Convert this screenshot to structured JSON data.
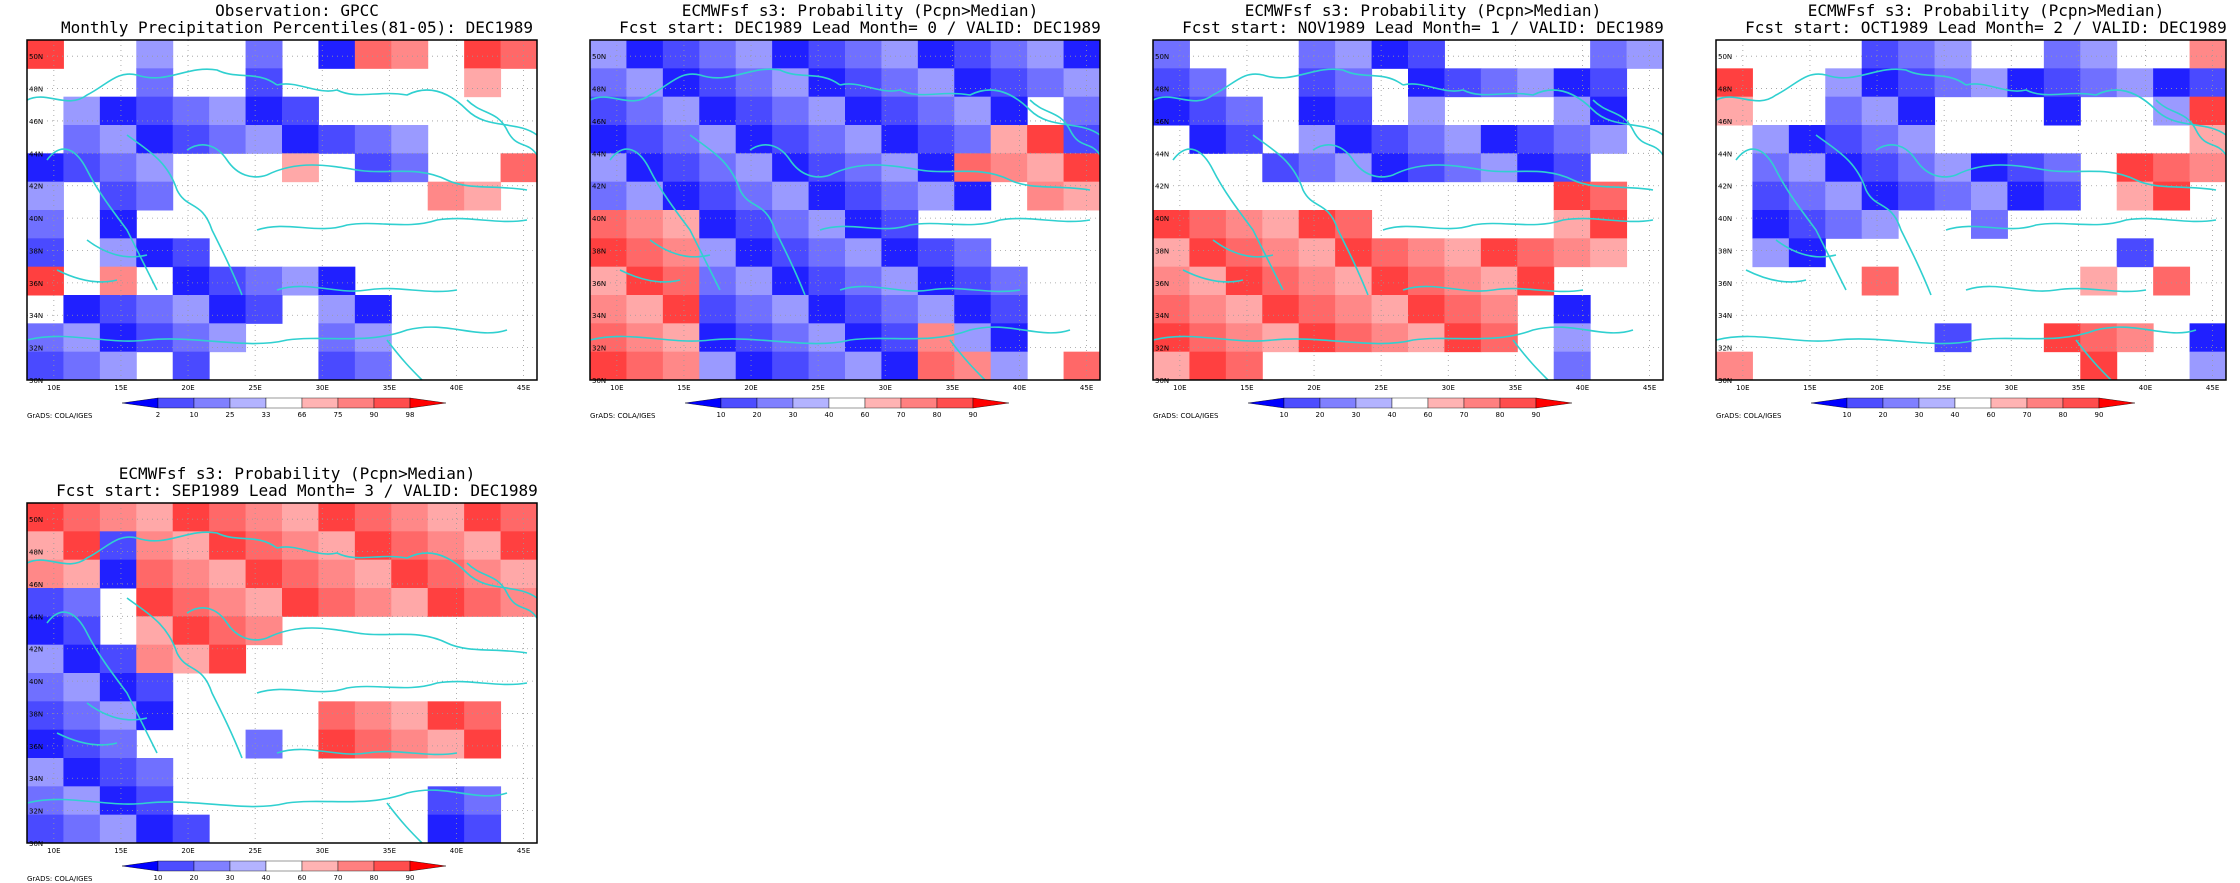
{
  "panels": [
    {
      "title1": "Observation: GPCC",
      "title2": "Monthly Precipitation Percentiles(81-05): DEC1989",
      "colorbar": {
        "labels": [
          "2",
          "10",
          "25",
          "33",
          "66",
          "75",
          "90",
          "98"
        ],
        "colors": [
          "#0000ff",
          "#4d4dff",
          "#8080ff",
          "#b3b3ff",
          "#ffffff",
          "#ffb3b3",
          "#ff8080",
          "#ff4d4d",
          "#ff0000"
        ]
      },
      "grid": [
        "rwwbwwbwbrrwrr",
        "wwwbwwbwwwwwrw",
        "wbbbbbbbwwwwww",
        "wbbbbbbbbbbwww",
        "bbbbwwwrwbbwwr",
        "bwbbwwwwwwwrrw",
        "bwbwwwwwwwwwww",
        "bwbbbwwwwwwwww",
        "rwrwbbbbbwwwww",
        "wbbbbbbwbbwwww",
        "bbbbbbwwbbwwww",
        "bbbwbwwwbbwwww"
      ],
      "credit": "GrADS: COLA/IGES"
    },
    {
      "title1": "ECMWFsf s3: Probability (Pcpn>Median)",
      "title2": "Fcst start: DEC1989   Lead Month= 0 / VALID: DEC1989",
      "colorbar": {
        "labels": [
          "10",
          "20",
          "30",
          "40",
          "60",
          "70",
          "80",
          "90"
        ],
        "colors": [
          "#0000ff",
          "#4d4dff",
          "#8080ff",
          "#b3b3ff",
          "#ffffff",
          "#ffb3b3",
          "#ff8080",
          "#ff4d4d",
          "#ff0000"
        ]
      },
      "grid": [
        "bbbbbbbbbbbbbb",
        "bbbbbbbbbbbbbb",
        "bbbbbbbbbbbbwb",
        "bbbbbbbbbbbrrb",
        "bbbbbbbbbbrrrr",
        "bbbbbbbbbbbwrr",
        "rrrbbbbbbwwwww",
        "rrrbbbbbbbbwww",
        "rrrbbbbbbbbbww",
        "rrrbbbbbbbbbww",
        "rrrbbbbbbrbbww",
        "rrrbbbbbbrrbwr"
      ],
      "credit": "GrADS: COLA/IGES"
    },
    {
      "title1": "ECMWFsf s3: Probability (Pcpn>Median)",
      "title2": "Fcst start: NOV1989   Lead Month= 1 / VALID: DEC1989",
      "colorbar": {
        "labels": [
          "10",
          "20",
          "30",
          "40",
          "60",
          "70",
          "80",
          "90"
        ],
        "colors": [
          "#0000ff",
          "#4d4dff",
          "#8080ff",
          "#b3b3ff",
          "#ffffff",
          "#ffb3b3",
          "#ff8080",
          "#ff4d4d",
          "#ff0000"
        ]
      },
      "grid": [
        "bwwwbbbbwwwwbb",
        "bbwwbbwbbbbbbw",
        "bbbwbbwbwwwbbw",
        "wbbwbbbbbbbbbw",
        "wwwbbbbbbbbbww",
        "wwwwwwwwwwwrrw",
        "rrrrrrwwwwwrrw",
        "rrrrrrrrrrrrrw",
        "rrrrrrrrrrrwww",
        "rrrrrrrrrrwbww",
        "rrrrrrrrrrwbww",
        "rrrwwwwwwwwbww"
      ],
      "credit": "GrADS: COLA/IGES"
    },
    {
      "title1": "ECMWFsf s3: Probability (Pcpn>Median)",
      "title2": "Fcst start: OCT1989   Lead Month= 2 / VALID: DEC1989",
      "colorbar": {
        "labels": [
          "10",
          "20",
          "30",
          "40",
          "60",
          "70",
          "80",
          "90"
        ],
        "colors": [
          "#0000ff",
          "#4d4dff",
          "#8080ff",
          "#b3b3ff",
          "#ffffff",
          "#ffb3b3",
          "#ff8080",
          "#ff4d4d",
          "#ff0000"
        ]
      },
      "grid": [
        "wwwwbbbwwbbwwr",
        "rwwbbbbbbbbbbb",
        "rwwbbbwwwbwwbr",
        "wbbbbbwwwwwwwr",
        "wbbbbbbbbbwrrr",
        "wbbbbbbbbbwrrw",
        "wbbbbwwbwwwwww",
        "wbbwwwwwwwwbww",
        "wwwwrwwwwwrwrw",
        "wwwwwwwwwwwwww",
        "wwwwwwbwwrrrwb",
        "rwwwwwwwwwrwwb"
      ],
      "credit": "GrADS: COLA/IGES"
    },
    {
      "title1": "ECMWFsf s3: Probability (Pcpn>Median)",
      "title2": "Fcst start: SEP1989   Lead Month= 3 / VALID: DEC1989",
      "colorbar": {
        "labels": [
          "10",
          "20",
          "30",
          "40",
          "60",
          "70",
          "80",
          "90"
        ],
        "colors": [
          "#0000ff",
          "#4d4dff",
          "#8080ff",
          "#b3b3ff",
          "#ffffff",
          "#ffb3b3",
          "#ff8080",
          "#ff4d4d",
          "#ff0000"
        ]
      },
      "grid": [
        "rrrrrrrrrrrrrr",
        "rrbrrrrrrrrrrr",
        "rrbrrrrrrrrrrr",
        "bbwrrrrrrrrrrr",
        "bbwrrrrwwwwwww",
        "bbbrrrwwwwwwww",
        "bbbbwwwwwwwwww",
        "bbbbwwwwrrrrrw",
        "bbbwwwbwrrrrrw",
        "bbbbwwwwwwwwww",
        "bbbbwwwwwwwbbw",
        "bbbbbwwwwwwbbw"
      ],
      "credit": "GrADS: COLA/IGES"
    }
  ],
  "map": {
    "lat_labels": [
      "50N",
      "48N",
      "46N",
      "44N",
      "42N",
      "40N",
      "38N",
      "36N",
      "34N",
      "32N",
      "30N"
    ],
    "lon_labels": [
      "10E",
      "15E",
      "20E",
      "25E",
      "30E",
      "35E",
      "40E",
      "45E"
    ],
    "coast_color": "#30d0d0",
    "grid_color": "#9a9a9a",
    "frame_color": "#000000",
    "lon_range": [
      8,
      46
    ],
    "lat_range": [
      30,
      51
    ]
  }
}
